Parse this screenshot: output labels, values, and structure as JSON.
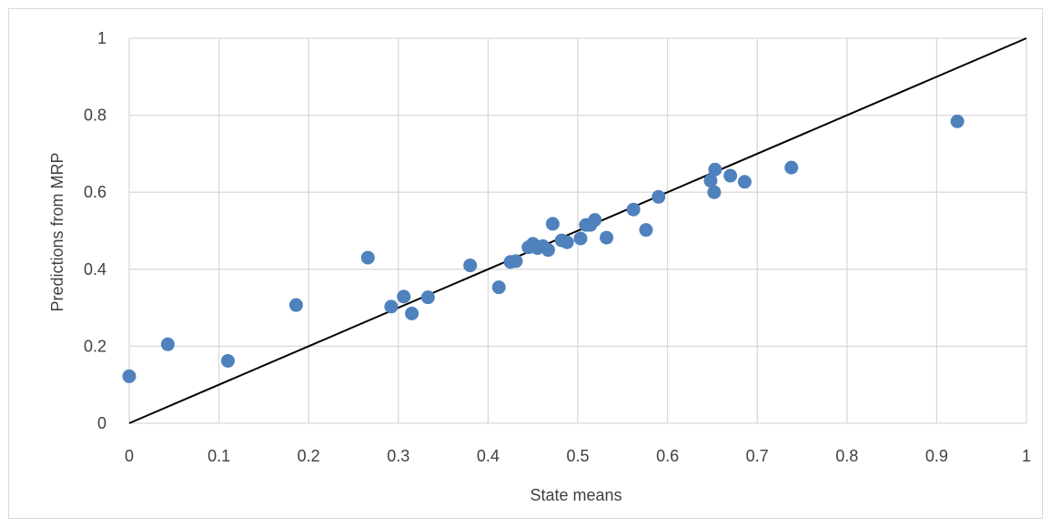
{
  "chart_data": {
    "type": "scatter",
    "title": "",
    "xlabel": "State means",
    "ylabel": "Predictions from MRP",
    "xlim": [
      0,
      1
    ],
    "ylim": [
      0,
      1
    ],
    "x_ticks": [
      "0",
      "0.1",
      "0.2",
      "0.3",
      "0.4",
      "0.5",
      "0.6",
      "0.7",
      "0.8",
      "0.9",
      "1"
    ],
    "y_ticks": [
      "0",
      "0.2",
      "0.4",
      "0.6",
      "0.8",
      "1"
    ],
    "grid": true,
    "legend": "none",
    "colors": {
      "points": "#4f81bd",
      "reference_line": "#000000",
      "grid": "#d9d9d9"
    },
    "reference_line": {
      "from": [
        0,
        0
      ],
      "to": [
        1,
        1
      ]
    },
    "series": [
      {
        "points": [
          [
            0.0,
            0.122
          ],
          [
            0.043,
            0.205
          ],
          [
            0.11,
            0.162
          ],
          [
            0.186,
            0.307
          ],
          [
            0.266,
            0.43
          ],
          [
            0.292,
            0.303
          ],
          [
            0.306,
            0.329
          ],
          [
            0.315,
            0.285
          ],
          [
            0.333,
            0.327
          ],
          [
            0.38,
            0.41
          ],
          [
            0.412,
            0.353
          ],
          [
            0.425,
            0.419
          ],
          [
            0.431,
            0.421
          ],
          [
            0.445,
            0.457
          ],
          [
            0.45,
            0.466
          ],
          [
            0.455,
            0.455
          ],
          [
            0.461,
            0.46
          ],
          [
            0.467,
            0.45
          ],
          [
            0.472,
            0.518
          ],
          [
            0.482,
            0.475
          ],
          [
            0.488,
            0.47
          ],
          [
            0.503,
            0.48
          ],
          [
            0.509,
            0.515
          ],
          [
            0.514,
            0.515
          ],
          [
            0.519,
            0.528
          ],
          [
            0.532,
            0.482
          ],
          [
            0.562,
            0.555
          ],
          [
            0.576,
            0.502
          ],
          [
            0.59,
            0.588
          ],
          [
            0.648,
            0.63
          ],
          [
            0.652,
            0.6
          ],
          [
            0.653,
            0.659
          ],
          [
            0.67,
            0.643
          ],
          [
            0.686,
            0.627
          ],
          [
            0.738,
            0.664
          ],
          [
            0.923,
            0.784
          ]
        ]
      }
    ]
  }
}
